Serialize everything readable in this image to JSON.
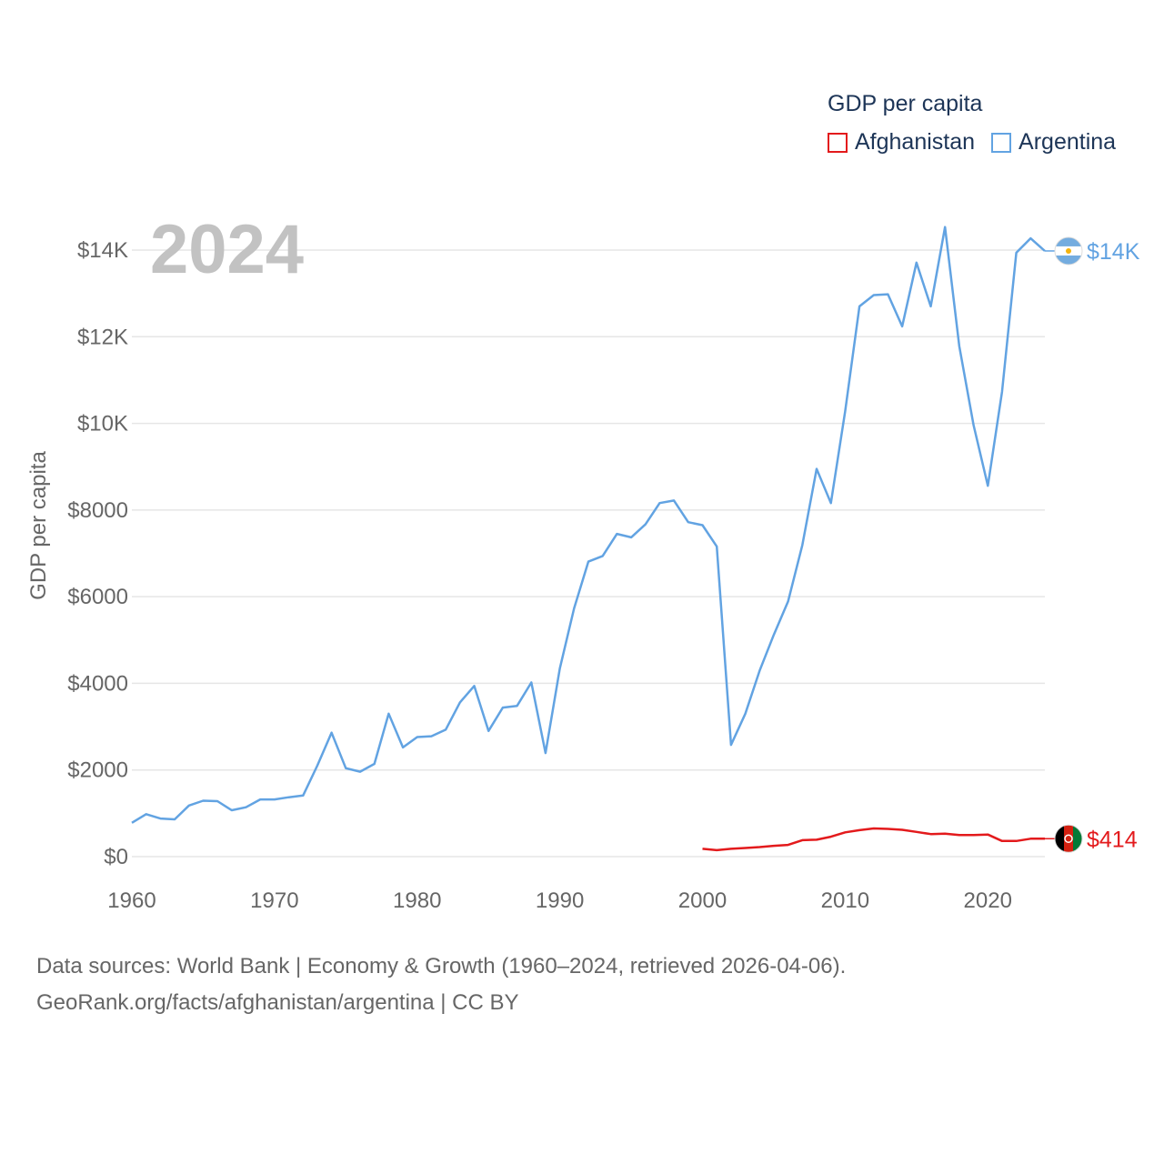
{
  "legend": {
    "title": "GDP per capita",
    "items": [
      {
        "label": "Afghanistan",
        "color": "#e31a1c"
      },
      {
        "label": "Argentina",
        "color": "#62a3e2"
      }
    ]
  },
  "footer": {
    "sources": "Data sources: World Bank | Economy & Growth (1960–2024, retrieved 2026-04-06).",
    "link": "GeoRank.org/facts/afghanistan/argentina | CC BY"
  },
  "chart_data": {
    "type": "line",
    "title": "GDP per capita",
    "year_label": "2024",
    "xlabel": "",
    "ylabel": "GDP per capita",
    "xlim": [
      1960,
      2024
    ],
    "ylim": [
      0,
      14500
    ],
    "grid": true,
    "x_ticks": [
      1960,
      1970,
      1980,
      1990,
      2000,
      2010,
      2020
    ],
    "y_ticks": [
      {
        "value": 0,
        "label": "$0"
      },
      {
        "value": 2000,
        "label": "$2000"
      },
      {
        "value": 4000,
        "label": "$4000"
      },
      {
        "value": 6000,
        "label": "$6000"
      },
      {
        "value": 8000,
        "label": "$8000"
      },
      {
        "value": 10000,
        "label": "$10K"
      },
      {
        "value": 12000,
        "label": "$12K"
      },
      {
        "value": 14000,
        "label": "$14K"
      }
    ],
    "series": [
      {
        "name": "Argentina",
        "color": "#62a3e2",
        "flag": "argentina-flag",
        "end_label": "$14K",
        "x": [
          1960,
          1961,
          1962,
          1963,
          1964,
          1965,
          1966,
          1967,
          1968,
          1969,
          1970,
          1971,
          1972,
          1973,
          1974,
          1975,
          1976,
          1977,
          1978,
          1979,
          1980,
          1981,
          1982,
          1983,
          1984,
          1985,
          1986,
          1987,
          1988,
          1989,
          1990,
          1991,
          1992,
          1993,
          1994,
          1995,
          1996,
          1997,
          1998,
          1999,
          2000,
          2001,
          2002,
          2003,
          2004,
          2005,
          2006,
          2007,
          2008,
          2009,
          2010,
          2011,
          2012,
          2013,
          2014,
          2015,
          2016,
          2017,
          2018,
          2019,
          2020,
          2021,
          2022,
          2023,
          2024
        ],
        "values": [
          780,
          980,
          880,
          860,
          1180,
          1290,
          1280,
          1070,
          1140,
          1320,
          1320,
          1370,
          1410,
          2100,
          2860,
          2040,
          1960,
          2140,
          3300,
          2520,
          2760,
          2780,
          2930,
          3560,
          3940,
          2900,
          3440,
          3480,
          4020,
          2390,
          4340,
          5730,
          6810,
          6940,
          7450,
          7370,
          7670,
          8160,
          8220,
          7720,
          7650,
          7160,
          2580,
          3300,
          4290,
          5120,
          5890,
          7190,
          8950,
          8160,
          10280,
          12700,
          12960,
          12980,
          12240,
          13710,
          12700,
          14530,
          11780,
          9960,
          8560,
          10730,
          13940,
          14270,
          13980
        ]
      },
      {
        "name": "Afghanistan",
        "color": "#e31a1c",
        "flag": "afghanistan-flag",
        "end_label": "$414",
        "x": [
          2000,
          2001,
          2002,
          2003,
          2004,
          2005,
          2006,
          2007,
          2008,
          2009,
          2010,
          2011,
          2012,
          2013,
          2014,
          2015,
          2016,
          2017,
          2018,
          2019,
          2020,
          2021,
          2022,
          2023,
          2024
        ],
        "values": [
          180,
          150,
          180,
          200,
          220,
          250,
          270,
          380,
          390,
          460,
          560,
          610,
          650,
          640,
          620,
          570,
          520,
          530,
          500,
          500,
          510,
          360,
          360,
          414,
          414
        ]
      }
    ]
  }
}
